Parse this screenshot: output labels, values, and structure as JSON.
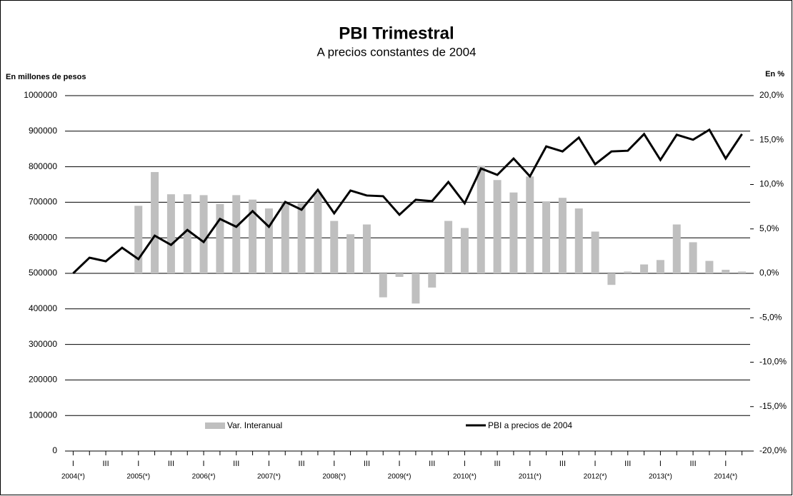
{
  "chart_data": {
    "type": "combo",
    "title": "PBI Trimestral",
    "subtitle": "A precios constantes de 2004",
    "y_label": "En millones de pesos",
    "y2_label": "En %",
    "categories": [
      "I",
      null,
      "III",
      null,
      "I",
      null,
      "III",
      null,
      "I",
      null,
      "III",
      null,
      "I",
      null,
      "III",
      null,
      "I",
      null,
      "III",
      null,
      "I",
      null,
      "III",
      null,
      "I",
      null,
      "III",
      null,
      "I",
      null,
      "III",
      null,
      "I",
      null,
      "III",
      null,
      "I",
      null,
      "III",
      null,
      "I",
      null
    ],
    "year_labels": [
      "2004(*)",
      "2005(*)",
      "2006(*)",
      "2007(*)",
      "2008(*)",
      "2009(*)",
      "2010(*)",
      "2011(*)",
      "2012(*)",
      "2013(*)",
      "2014(*)"
    ],
    "series": [
      {
        "name": "Var. Interanual",
        "type": "bar",
        "axis": "y2",
        "color": "#bfbfbf",
        "values": [
          null,
          null,
          null,
          null,
          7.6,
          11.4,
          8.9,
          8.9,
          8.8,
          7.8,
          8.8,
          8.3,
          7.3,
          8.0,
          7.9,
          9.1,
          5.9,
          4.4,
          5.5,
          -2.7,
          -0.4,
          -3.4,
          -1.6,
          5.9,
          5.1,
          12.1,
          10.5,
          9.1,
          10.9,
          8.1,
          8.5,
          7.3,
          4.7,
          -1.3,
          0.2,
          1.0,
          1.5,
          5.5,
          3.5,
          1.4,
          0.4,
          0.2
        ]
      },
      {
        "name": "PBI a precios de 2004",
        "type": "line",
        "axis": "y",
        "color": "#000000",
        "values": [
          500000,
          544000,
          534000,
          572000,
          540000,
          606000,
          580000,
          622000,
          588000,
          653000,
          631000,
          675000,
          631000,
          701000,
          679000,
          735000,
          669000,
          733000,
          719000,
          717000,
          665000,
          707000,
          703000,
          757000,
          697000,
          795000,
          777000,
          823000,
          773000,
          857000,
          843000,
          882000,
          807000,
          843000,
          845000,
          892000,
          819000,
          890000,
          876000,
          904000,
          823000,
          892000
        ]
      }
    ],
    "ylim": [
      0,
      1000000
    ],
    "yticks": [
      0,
      100000,
      200000,
      300000,
      400000,
      500000,
      600000,
      700000,
      800000,
      900000,
      1000000
    ],
    "y2lim": [
      -20,
      20
    ],
    "y2ticks": [
      {
        "value": -20,
        "label": "-20,0%"
      },
      {
        "value": -15,
        "label": "-15,0%"
      },
      {
        "value": -10,
        "label": "-10,0%"
      },
      {
        "value": -5,
        "label": "-5,0%"
      },
      {
        "value": 0,
        "label": "0,0%"
      },
      {
        "value": 5,
        "label": "5,0%"
      },
      {
        "value": 10,
        "label": "10,0%"
      },
      {
        "value": 15,
        "label": "15,0%"
      },
      {
        "value": 20,
        "label": "20,0%"
      }
    ],
    "grid": true
  }
}
